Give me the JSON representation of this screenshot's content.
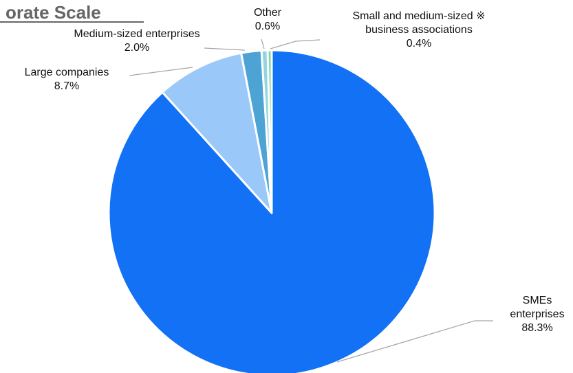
{
  "chart_data": {
    "type": "pie",
    "title": "orate Scale",
    "slices": [
      {
        "label_lines": [
          "SMEs",
          "enterprises"
        ],
        "percent_text": "88.3%",
        "value": 88.3,
        "color": "#1271f5"
      },
      {
        "label_lines": [
          "Large companies"
        ],
        "percent_text": "8.7%",
        "value": 8.7,
        "color": "#99c8f9"
      },
      {
        "label_lines": [
          "Medium-sized enterprises"
        ],
        "percent_text": "2.0%",
        "value": 2.0,
        "color": "#4ea3d5"
      },
      {
        "label_lines": [
          "Other"
        ],
        "percent_text": "0.6%",
        "value": 0.6,
        "color": "#8fd6df"
      },
      {
        "label_lines": [
          "Small and medium-sized ※",
          "business associations"
        ],
        "percent_text": "0.4%",
        "value": 0.4,
        "color": "#7bd8a3"
      }
    ]
  }
}
